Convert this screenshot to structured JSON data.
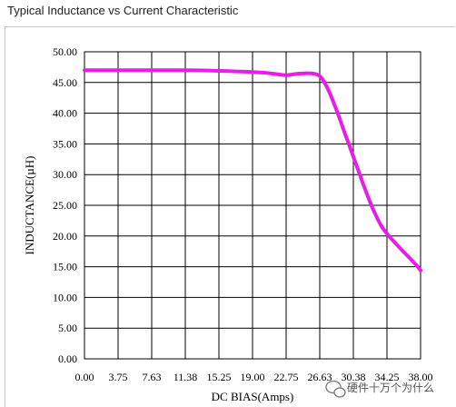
{
  "header": {
    "title": "Typical Inductance vs Current Characteristic"
  },
  "watermark": {
    "text": "硬件十万个为什么",
    "icon": "wechat-icon"
  },
  "chart_data": {
    "type": "line",
    "xlabel": "DC BIAS(Amps)",
    "ylabel": "INDUCTANCE(µH)",
    "x_tick_labels": [
      "0.00",
      "3.75",
      "7.63",
      "11.38",
      "15.25",
      "19.00",
      "22.75",
      "26.63",
      "30.38",
      "34.25",
      "38.00"
    ],
    "y_tick_labels": [
      "0.00",
      "5.00",
      "10.00",
      "15.00",
      "20.00",
      "25.00",
      "30.00",
      "35.00",
      "40.00",
      "45.00",
      "50.00"
    ],
    "xlim": [
      0,
      38
    ],
    "ylim": [
      0,
      50
    ],
    "grid": true,
    "line_color": "#e81ee8",
    "series": [
      {
        "x": [
          0,
          3.75,
          7.63,
          11.38,
          15.25,
          19.0,
          21.0,
          22.75,
          24.0,
          25.5,
          26.63,
          27.5,
          28.5,
          29.5,
          30.38,
          31.5,
          32.5,
          33.5,
          34.25,
          35.5,
          36.5,
          37.5,
          38.0
        ],
        "values": [
          47.0,
          47.0,
          47.0,
          47.0,
          46.9,
          46.7,
          46.5,
          46.2,
          46.4,
          46.5,
          46.0,
          44.0,
          40.5,
          36.5,
          33.0,
          28.5,
          24.8,
          21.8,
          20.3,
          18.3,
          16.8,
          15.3,
          14.4
        ]
      }
    ]
  }
}
